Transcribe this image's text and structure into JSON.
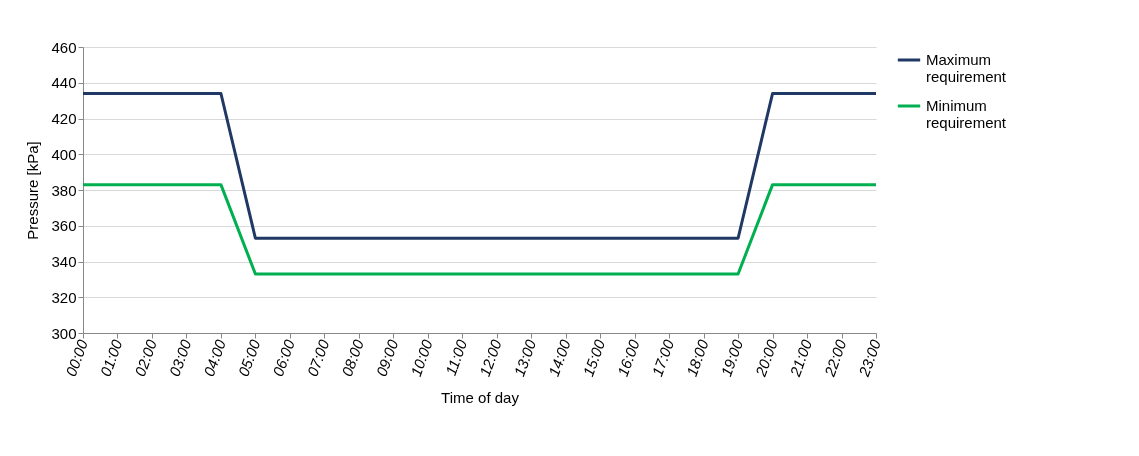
{
  "chart_data": {
    "type": "line",
    "xlabel": "Time of day",
    "ylabel": "Pressure [kPa]",
    "categories": [
      "00:00",
      "01:00",
      "02:00",
      "03:00",
      "04:00",
      "05:00",
      "06:00",
      "07:00",
      "08:00",
      "09:00",
      "10:00",
      "11:00",
      "12:00",
      "13:00",
      "14:00",
      "15:00",
      "16:00",
      "17:00",
      "18:00",
      "19:00",
      "20:00",
      "21:00",
      "22:00",
      "23:00"
    ],
    "series": [
      {
        "name": "Maximum requirement",
        "color": "#1f3864",
        "values": [
          434,
          434,
          434,
          434,
          434,
          353,
          353,
          353,
          353,
          353,
          353,
          353,
          353,
          353,
          353,
          353,
          353,
          353,
          353,
          353,
          434,
          434,
          434,
          434
        ]
      },
      {
        "name": "Minimum requirement",
        "color": "#00b050",
        "values": [
          383,
          383,
          383,
          383,
          383,
          333,
          333,
          333,
          333,
          333,
          333,
          333,
          333,
          333,
          333,
          333,
          333,
          333,
          333,
          333,
          383,
          383,
          383,
          383
        ]
      }
    ],
    "ylim": [
      300,
      460
    ],
    "yticks": [
      300,
      320,
      340,
      360,
      380,
      400,
      420,
      440,
      460
    ],
    "grid": "y",
    "legend": "right",
    "marker": "none",
    "line_style": "solid"
  }
}
